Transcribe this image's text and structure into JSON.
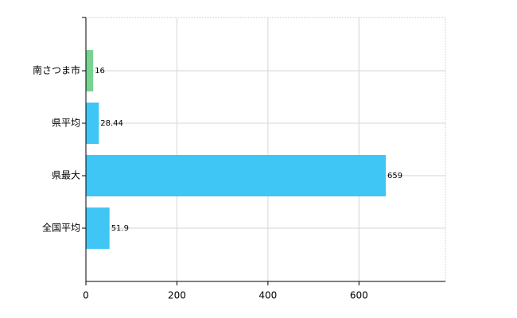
{
  "chart_data": {
    "type": "barh",
    "categories": [
      "南さつま市",
      "県平均",
      "県最大",
      "全国平均"
    ],
    "values": [
      16,
      28.44,
      659,
      51.9
    ],
    "colors": [
      "#77d38f",
      "#3fc6f4",
      "#3fc6f4",
      "#3fc6f4"
    ],
    "xlim": [
      0,
      790
    ],
    "xticks": [
      0,
      200,
      400,
      600
    ],
    "grid": true
  }
}
